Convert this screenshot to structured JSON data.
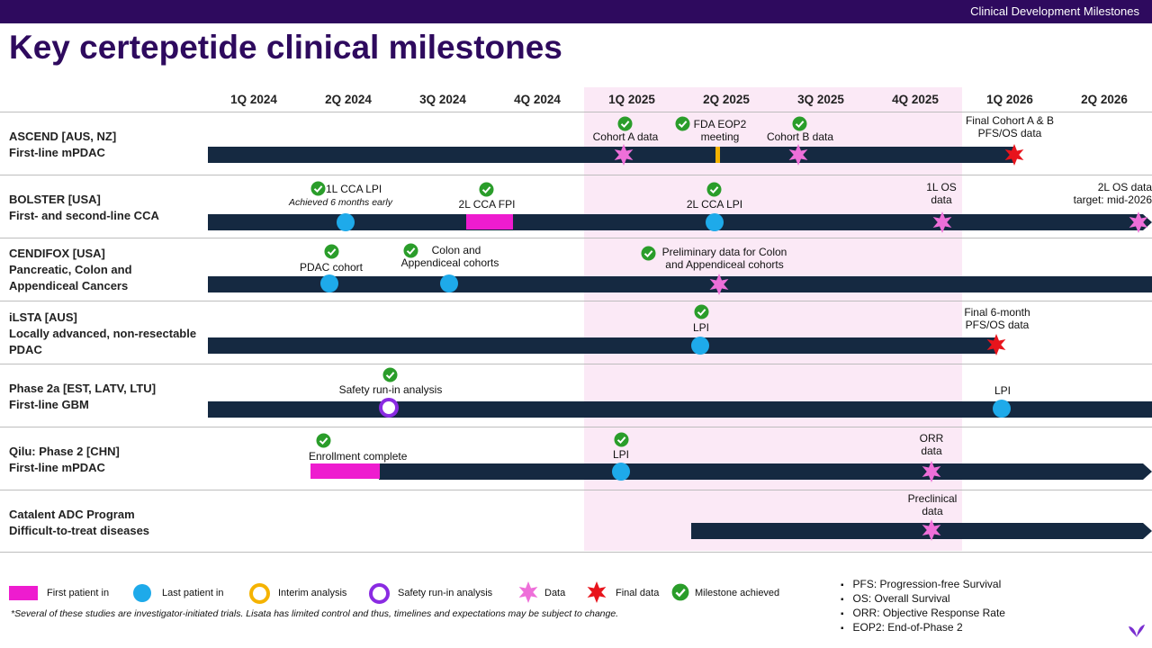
{
  "header": {
    "section": "Clinical Development Milestones",
    "title": "Key certepetide clinical milestones"
  },
  "quarters": [
    "1Q 2024",
    "2Q 2024",
    "3Q 2024",
    "4Q 2024",
    "1Q 2025",
    "2Q 2025",
    "3Q 2025",
    "4Q 2025",
    "1Q 2026",
    "2Q 2026"
  ],
  "rows": [
    {
      "name": "ASCEND [AUS, NZ]",
      "sub": "First-line mPDAC"
    },
    {
      "name": "BOLSTER [USA]",
      "sub": "First- and second-line CCA"
    },
    {
      "name": "CENDIFOX [USA]",
      "sub": "Pancreatic, Colon and",
      "sub2": "Appendiceal Cancers"
    },
    {
      "name": "iLSTA [AUS]",
      "sub": "Locally advanced, non-resectable",
      "sub2": "PDAC"
    },
    {
      "name": "Phase 2a [EST, LATV, LTU]",
      "sub": "First-line GBM"
    },
    {
      "name": "Qilu: Phase 2 [CHN]",
      "sub": "First-line mPDAC"
    },
    {
      "name": "Catalent ADC Program",
      "sub": "Difficult-to-treat diseases"
    }
  ],
  "milestones": {
    "ascend_cohort_a": "Cohort A data",
    "ascend_fda_1": "FDA EOP2",
    "ascend_fda_2": "meeting",
    "ascend_cohort_b": "Cohort B data",
    "ascend_final_1": "Final Cohort A & B",
    "ascend_final_2": "PFS/OS data",
    "bolster_1l_lpi": "1L CCA LPI",
    "bolster_early": "Achieved 6 months early",
    "bolster_2l_fpi": "2L CCA FPI",
    "bolster_2l_lpi": "2L CCA LPI",
    "bolster_1l_os_1": "1L OS",
    "bolster_1l_os_2": "data",
    "bolster_2l_os_1": "2L OS data",
    "bolster_2l_os_2": "target: mid-2026",
    "cendifox_pdac": "PDAC cohort",
    "cendifox_colon_1": "Colon and",
    "cendifox_colon_2": "Appendiceal cohorts",
    "cendifox_prelim_1": "Preliminary data for Colon",
    "cendifox_prelim_2": "and Appendiceal cohorts",
    "ilsta_lpi": "LPI",
    "ilsta_final_1": "Final 6-month",
    "ilsta_final_2": "PFS/OS data",
    "phase2a_safety": "Safety run-in analysis",
    "phase2a_lpi": "LPI",
    "qilu_enroll": "Enrollment complete",
    "qilu_lpi": "LPI",
    "qilu_orr_1": "ORR",
    "qilu_orr_2": "data",
    "catalent_pre_1": "Preclinical",
    "catalent_pre_2": "data"
  },
  "legend": {
    "first_patient": "First patient in",
    "last_patient": "Last patient in",
    "interim": "Interim analysis",
    "safety": "Safety run-in analysis",
    "data": "Data",
    "final": "Final data",
    "achieved": "Milestone achieved"
  },
  "footnote": "*Several of these studies are investigator-initiated trials. Lisata has limited control and thus, timelines and expectations may be subject to change.",
  "abbreviations": [
    "PFS: Progression-free Survival",
    "OS: Overall Survival",
    "ORR: Objective Response Rate",
    "EOP2: End-of-Phase 2"
  ],
  "colors": {
    "brand": "#2e0a5e",
    "bar": "#152941",
    "first_patient": "#ee1ccf",
    "last_patient": "#1eaaea",
    "interim": "#f5b300",
    "safety": "#8a2be2",
    "data": "#ee6fd9",
    "final": "#e8141c",
    "achieved": "#2a9d2a",
    "highlight": "#fbe9f6"
  }
}
